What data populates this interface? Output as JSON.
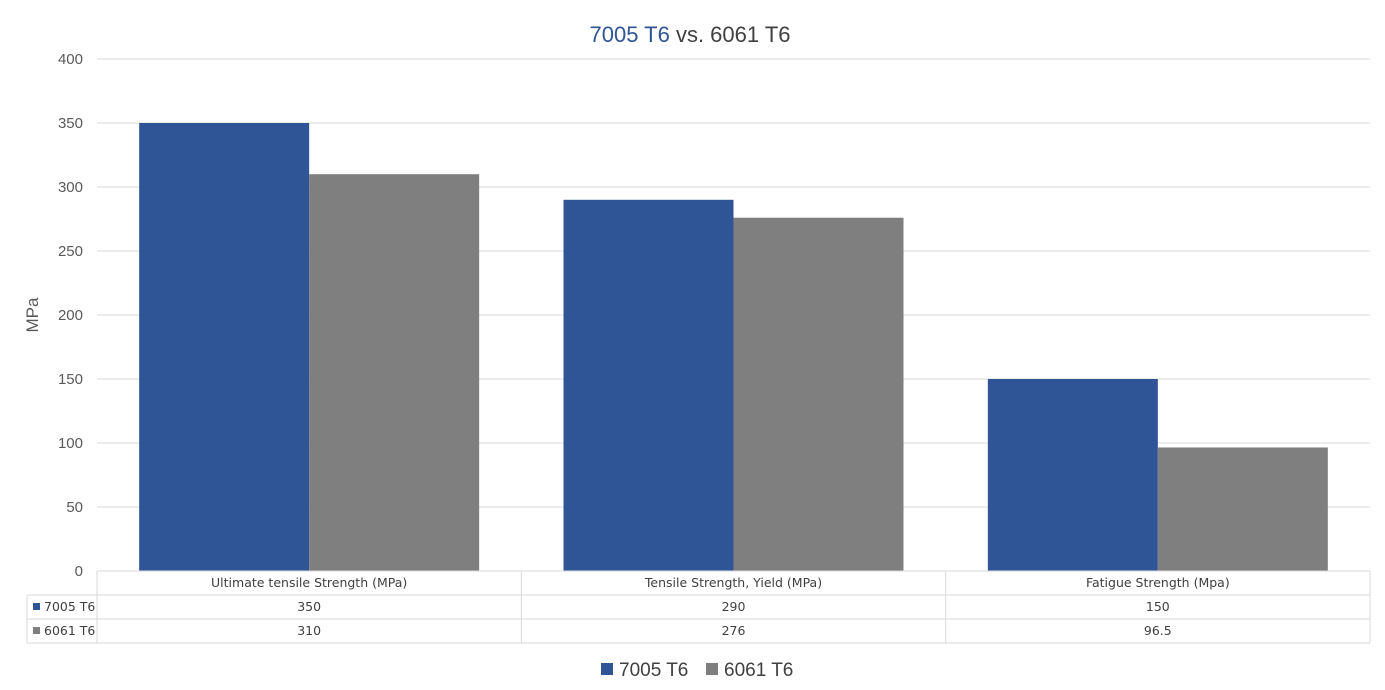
{
  "chart_data": {
    "type": "bar",
    "title_parts": [
      "7005 T6",
      " vs. 6061 T6"
    ],
    "ylabel": "MPa",
    "xlabel": "",
    "ylim": [
      0,
      400
    ],
    "yticks": [
      0,
      50,
      100,
      150,
      200,
      250,
      300,
      350,
      400
    ],
    "categories": [
      "Ultimate tensile Strength (MPa)",
      "Tensile Strength, Yield (MPa)",
      "Fatigue Strength (Mpa)"
    ],
    "series": [
      {
        "name": "7005 T6",
        "values": [
          350,
          290,
          150
        ],
        "display_values": [
          "350",
          "290",
          "150"
        ],
        "color": "#2F5597"
      },
      {
        "name": "6061 T6",
        "values": [
          310,
          276,
          96.5
        ],
        "display_values": [
          "310",
          "276",
          "96.5"
        ],
        "color": "#7F7F7F"
      }
    ],
    "grid": true,
    "data_table": true,
    "legend_placement": "bottom"
  },
  "colors": {
    "title_accent": "#2F5597",
    "title_rest": "#404040",
    "gridline": "#D9D9D9",
    "axis_text": "#595959"
  }
}
